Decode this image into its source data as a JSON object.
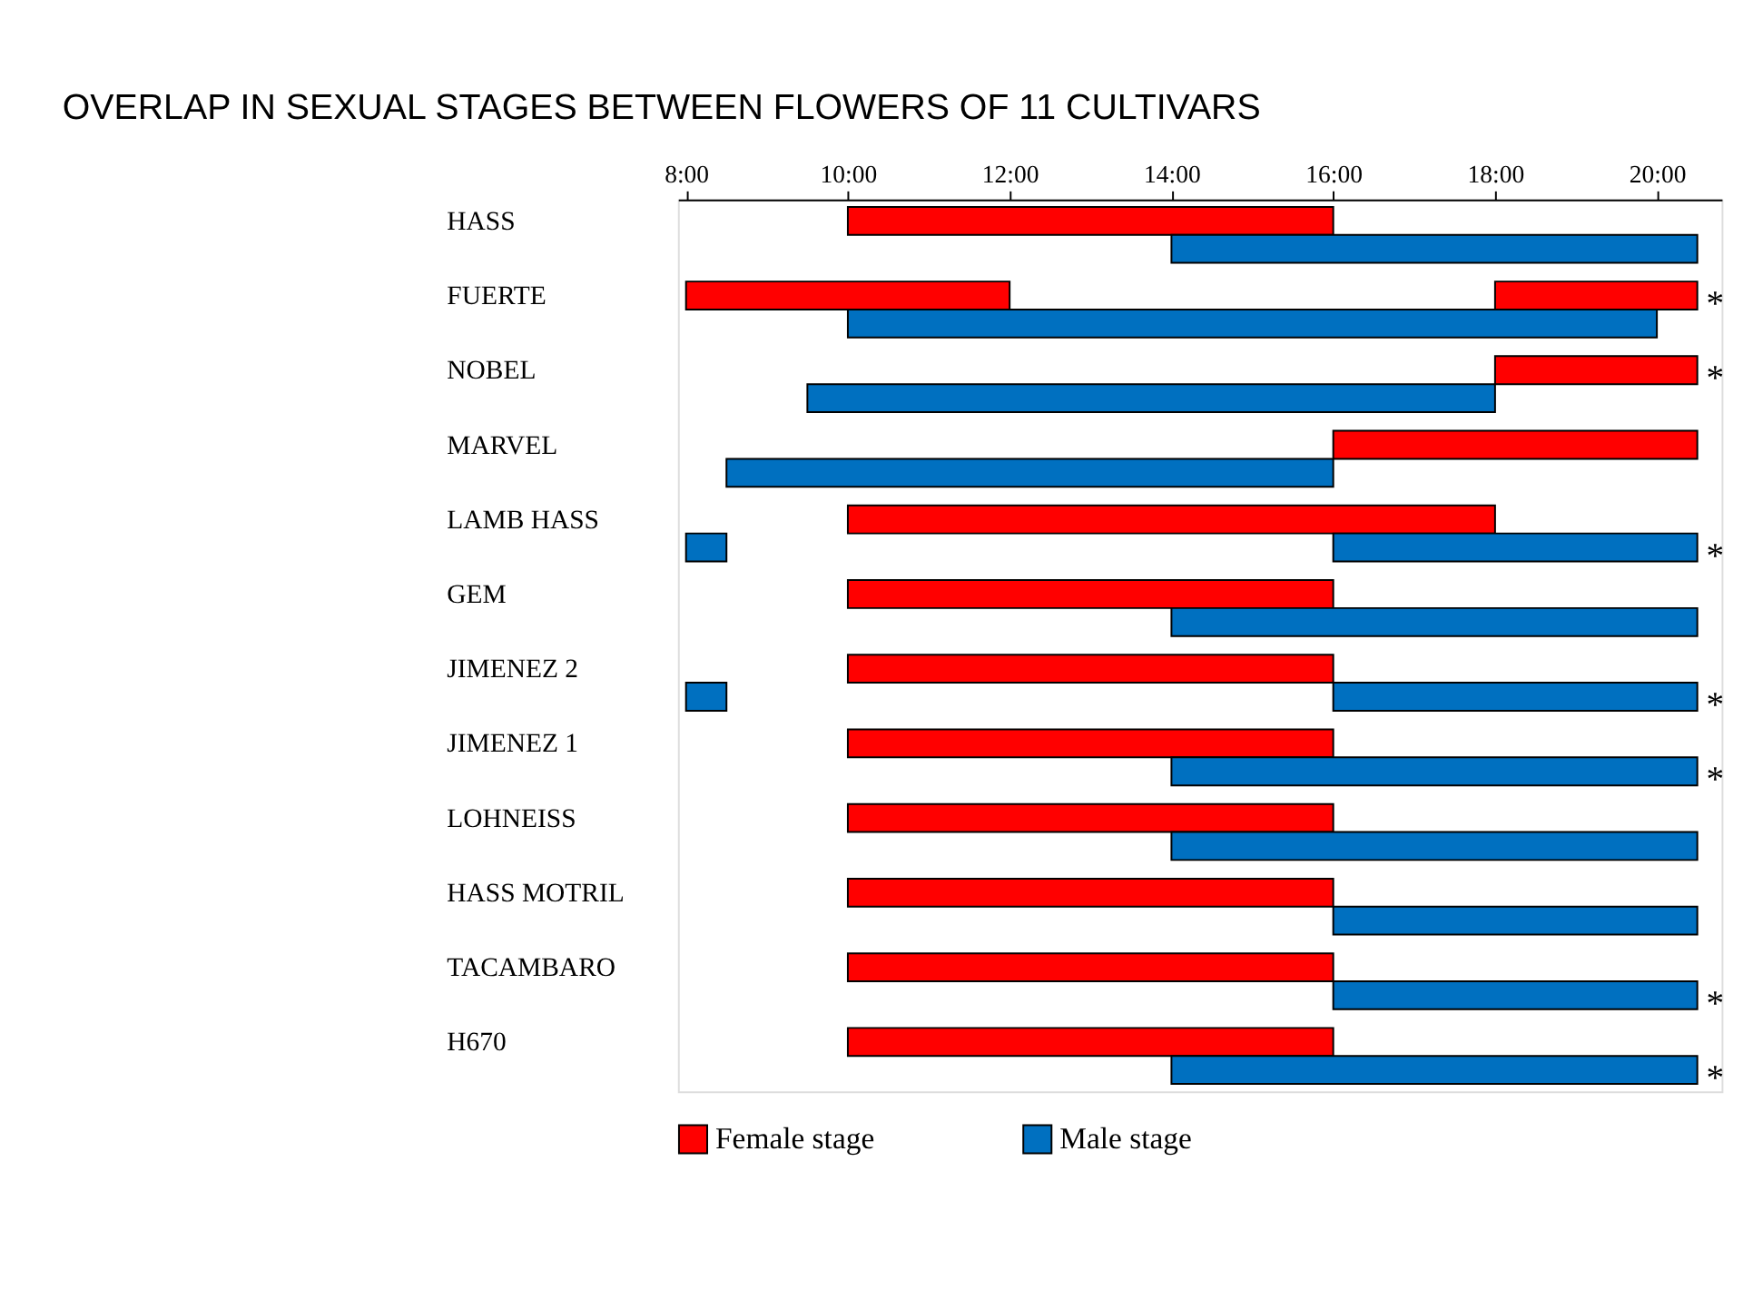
{
  "chart_data": {
    "type": "bar",
    "orientation": "horizontal",
    "title": "OVERLAP IN SEXUAL STAGES BETWEEN FLOWERS OF 11 CULTIVARS",
    "categories": [
      "HASS",
      "FUERTE",
      "NOBEL",
      "MARVEL",
      "LAMB HASS",
      "GEM",
      "JIMENEZ 2",
      "JIMENEZ 1",
      "LOHNEISS",
      "HASS MOTRIL",
      "TACAMBARO",
      "H670"
    ],
    "series": [
      {
        "name": "Female stage",
        "color": "#ff0000",
        "base": [
          10,
          8,
          18,
          16,
          10,
          10,
          10,
          10,
          10,
          10,
          10,
          10
        ],
        "values": [
          6,
          4,
          2.5,
          4.5,
          8,
          6,
          6,
          6,
          6,
          6,
          6,
          6
        ],
        "value_labels": [
          null,
          null,
          "*",
          null,
          null,
          null,
          null,
          null,
          null,
          null,
          null,
          null
        ]
      },
      {
        "color": "#ff0000",
        "base": [
          null,
          18,
          null,
          null,
          null,
          null,
          null,
          null,
          null,
          null,
          null,
          null
        ],
        "values": [
          null,
          2.5,
          null,
          null,
          null,
          null,
          null,
          null,
          null,
          null,
          null,
          null
        ],
        "value_labels": [
          null,
          "*",
          null,
          null,
          null,
          null,
          null,
          null,
          null,
          null,
          null,
          null
        ]
      },
      {
        "name": "Male stage",
        "color": "#0070c0",
        "base": [
          14,
          10,
          9.5,
          8.5,
          8,
          14,
          8,
          14,
          14,
          16,
          16,
          14
        ],
        "values": [
          6.5,
          10,
          8.5,
          7.5,
          0.5,
          6.5,
          0.5,
          6.5,
          6.5,
          4.5,
          4.5,
          6.5
        ],
        "value_labels": [
          null,
          null,
          null,
          null,
          null,
          null,
          null,
          "*",
          null,
          null,
          "*",
          "*"
        ]
      },
      {
        "color": "#0070c0",
        "base": [
          null,
          null,
          null,
          null,
          16,
          null,
          16,
          null,
          null,
          null,
          null,
          null
        ],
        "values": [
          null,
          null,
          null,
          null,
          4.5,
          null,
          4.5,
          null,
          null,
          null,
          null,
          null
        ],
        "value_labels": [
          null,
          null,
          null,
          null,
          "*",
          null,
          "*",
          null,
          null,
          null,
          null,
          null
        ]
      }
    ],
    "xlim": [
      7.9,
      20.8
    ],
    "xticks": [
      {
        "value": 8,
        "label": "8:00"
      },
      {
        "value": 10,
        "label": "10:00"
      },
      {
        "value": 12,
        "label": "12:00"
      },
      {
        "value": 14,
        "label": "14:00"
      },
      {
        "value": 16,
        "label": "16:00"
      },
      {
        "value": 18,
        "label": "18:00"
      },
      {
        "value": 20,
        "label": "20:00"
      }
    ],
    "legend": "bottom",
    "grid": false
  }
}
